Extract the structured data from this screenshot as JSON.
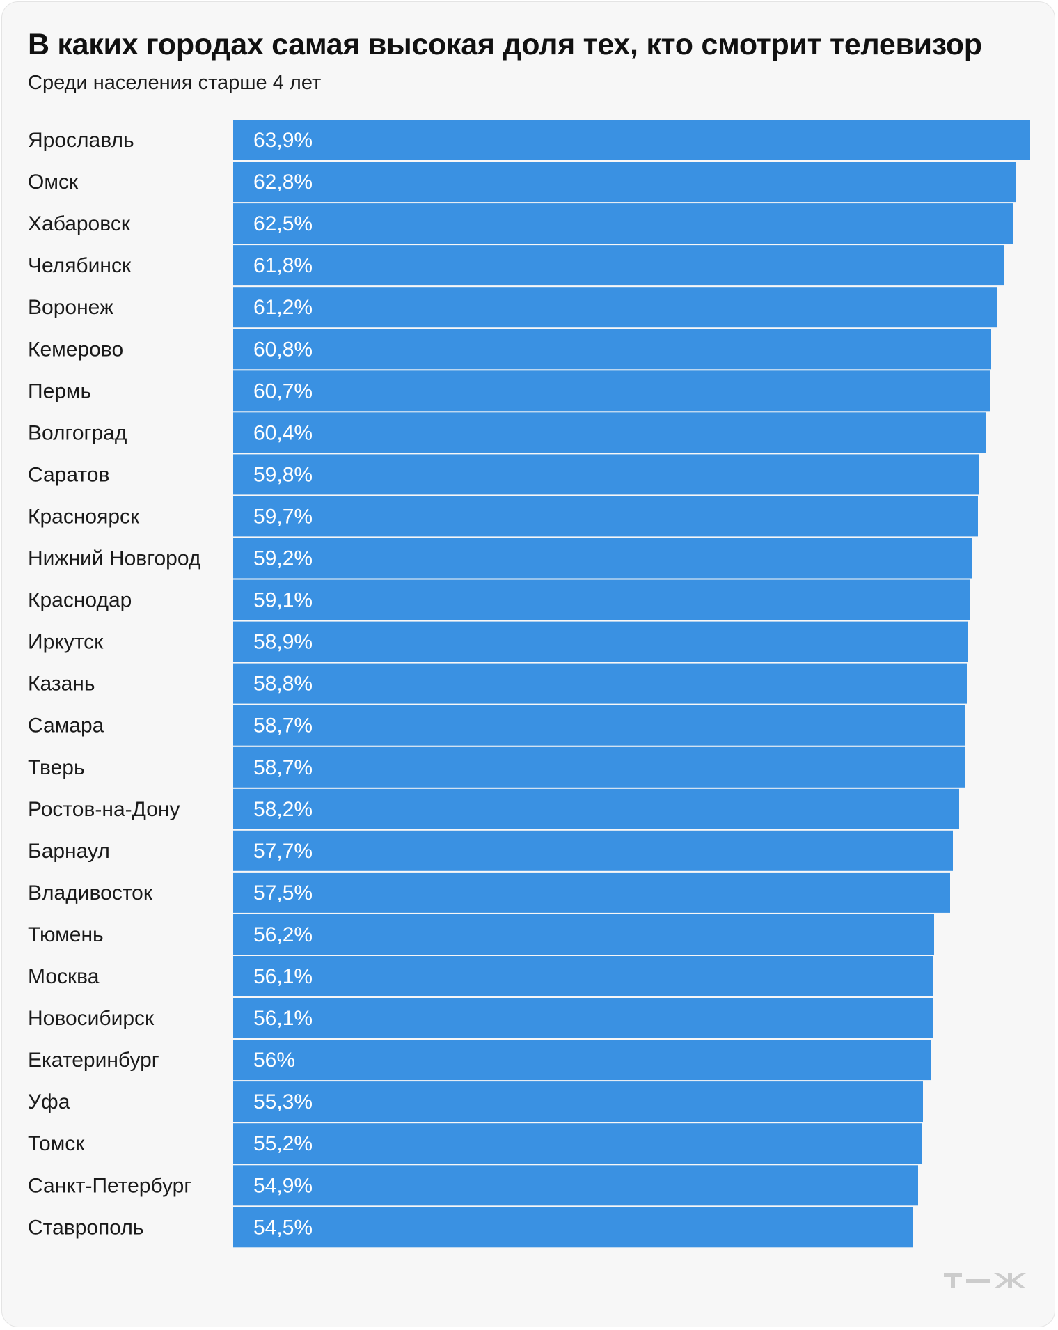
{
  "chart_data": {
    "type": "bar",
    "orientation": "horizontal",
    "title": "В каких городах самая высокая доля тех, кто смотрит телевизор",
    "subtitle": "Среди населения старше 4 лет",
    "categories": [
      "Ярославль",
      "Омск",
      "Хабаровск",
      "Челябинск",
      "Воронеж",
      "Кемерово",
      "Пермь",
      "Волгоград",
      "Саратов",
      "Красноярск",
      "Нижний Новгород",
      "Краснодар",
      "Иркутск",
      "Казань",
      "Самара",
      "Тверь",
      "Ростов-на-Дону",
      "Барнаул",
      "Владивосток",
      "Тюмень",
      "Москва",
      "Новосибирск",
      "Екатеринбург",
      "Уфа",
      "Томск",
      "Санкт-Петербург",
      "Ставрополь"
    ],
    "values": [
      63.9,
      62.8,
      62.5,
      61.8,
      61.2,
      60.8,
      60.7,
      60.4,
      59.8,
      59.7,
      59.2,
      59.1,
      58.9,
      58.8,
      58.7,
      58.7,
      58.2,
      57.7,
      57.5,
      56.2,
      56.1,
      56.1,
      56,
      55.3,
      55.2,
      54.9,
      54.5
    ],
    "value_labels": [
      "63,9%",
      "62,8%",
      "62,5%",
      "61,8%",
      "61,2%",
      "60,8%",
      "60,7%",
      "60,4%",
      "59,8%",
      "59,7%",
      "59,2%",
      "59,1%",
      "58,9%",
      "58,8%",
      "58,7%",
      "58,7%",
      "58,2%",
      "57,7%",
      "57,5%",
      "56,2%",
      "56,1%",
      "56,1%",
      "56%",
      "55,3%",
      "55,2%",
      "54,9%",
      "54,5%"
    ],
    "unit": "%",
    "xlim": [
      0,
      63.9
    ],
    "bar_color": "#3a91e2",
    "grid": false,
    "legend": "none"
  },
  "colors": {
    "background": "#f7f7f7",
    "text": "#111111",
    "bar": "#3a91e2",
    "value_text": "#ffffff",
    "logo": "#cccccc"
  },
  "logo": {
    "icon": "tj-logo-icon"
  }
}
